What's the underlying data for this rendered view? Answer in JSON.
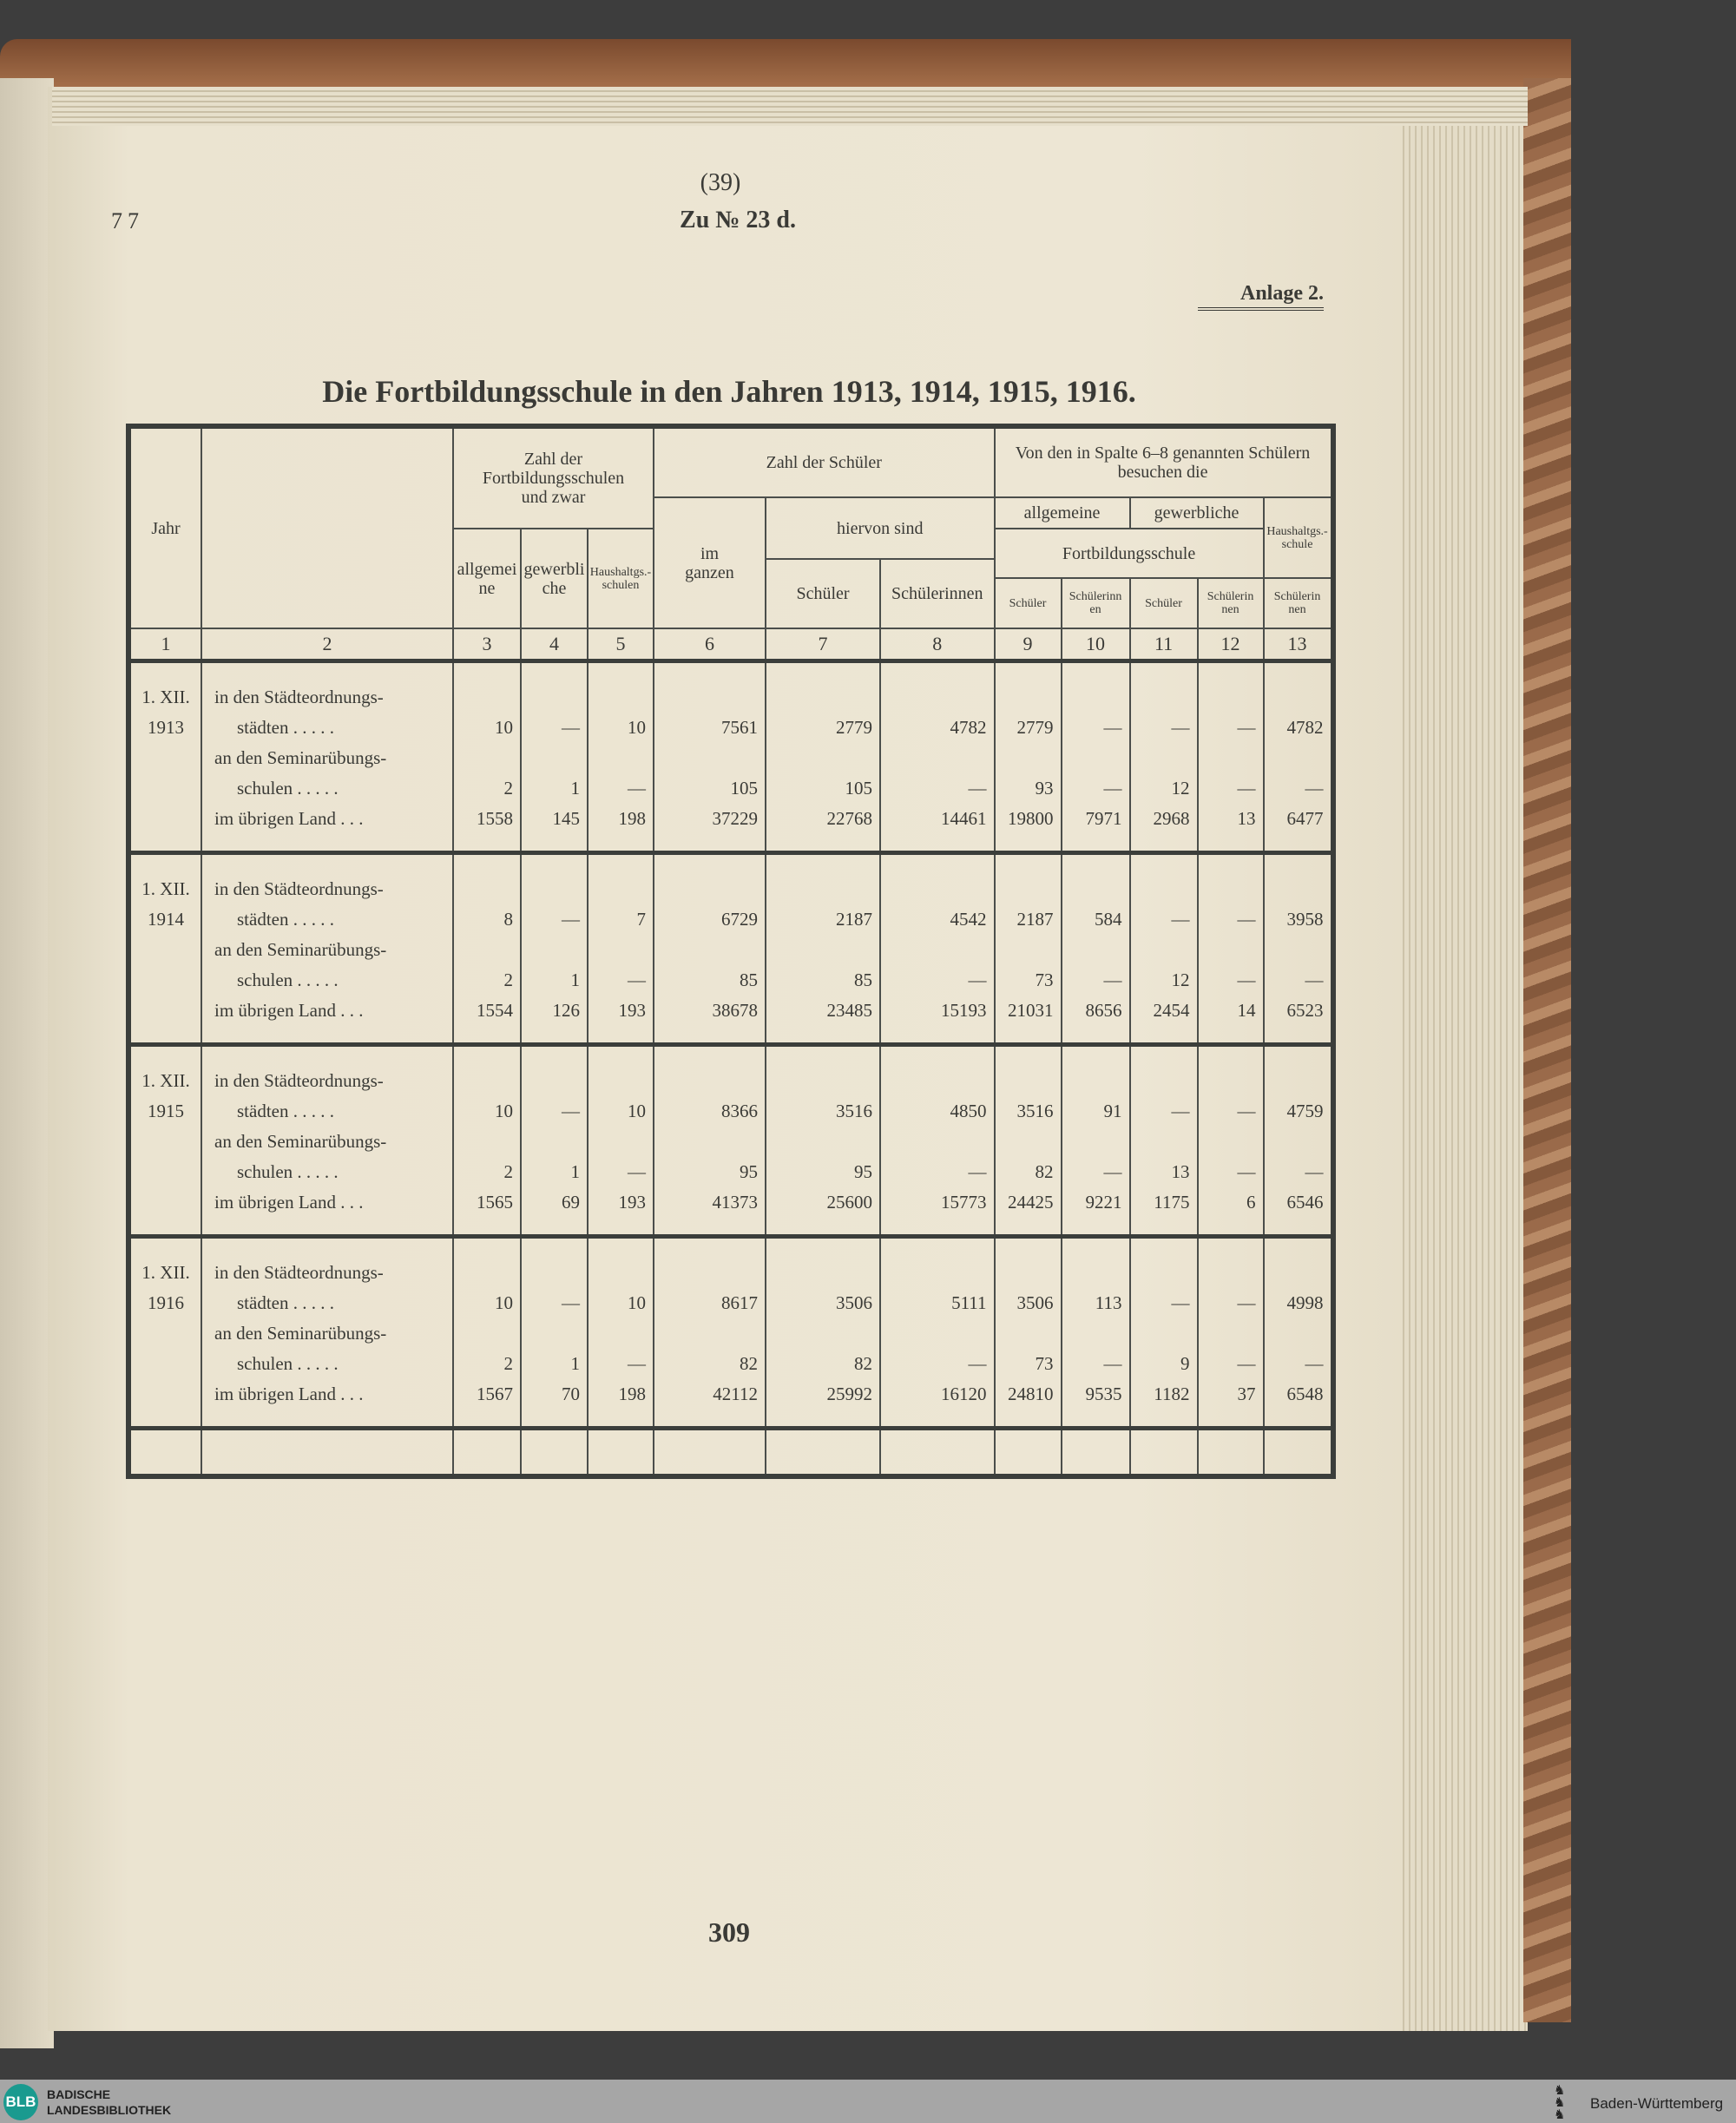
{
  "page_header": {
    "paren": "(39)",
    "doc_ref": "Zu № 23 d.",
    "margin_number": "77",
    "annex": "Anlage 2."
  },
  "title": "Die Fortbildungsschule in den Jahren 1913, 1914, 1915, 1916.",
  "page_number": "309",
  "table": {
    "headers": {
      "jahr": "Jahr",
      "zahl_schulen": "Zahl der Fortbildungsschulen und zwar",
      "allgemeine_schulen": "allgemeine",
      "gewerbliche_schulen": "gewerbliche",
      "haushalt_schulen": "Haushaltgs.-schulen",
      "zahl_schueler": "Zahl der Schüler",
      "im_ganzen": "im ganzen",
      "hiervon": "hiervon sind",
      "schueler": "Schüler",
      "schuelerinnen": "Schülerinnen",
      "von_den": "Von den in Spalte 6–8 genannten Schülern besuchen die",
      "allgemeine": "allgemeine",
      "gewerbliche": "gewerbliche",
      "fortbildungsschule": "Fortbildungsschule",
      "haushaltgsschule": "Haushaltgs.-schule",
      "c9": "Schüler",
      "c10": "Schülerinnen",
      "c11": "Schüler",
      "c12": "Schülerinnen",
      "c13": "Schülerinnen"
    },
    "column_numbers": [
      "1",
      "2",
      "3",
      "4",
      "5",
      "6",
      "7",
      "8",
      "9",
      "10",
      "11",
      "12",
      "13"
    ],
    "row_labels": [
      "in den Städteordnungs-",
      "städten . . . . .",
      "an den Seminarübungs-",
      "schulen . . . . .",
      "im übrigen Land . . ."
    ],
    "years": [
      {
        "date": "1. XII.",
        "year": "1913",
        "rows": [
          [
            "10",
            "—",
            "10",
            "7561",
            "2779",
            "4782",
            "2779",
            "—",
            "—",
            "—",
            "4782"
          ],
          [
            "2",
            "1",
            "—",
            "105",
            "105",
            "—",
            "93",
            "—",
            "12",
            "—",
            "—"
          ],
          [
            "1558",
            "145",
            "198",
            "37229",
            "22768",
            "14461",
            "19800",
            "7971",
            "2968",
            "13",
            "6477"
          ]
        ]
      },
      {
        "date": "1. XII.",
        "year": "1914",
        "rows": [
          [
            "8",
            "—",
            "7",
            "6729",
            "2187",
            "4542",
            "2187",
            "584",
            "—",
            "—",
            "3958"
          ],
          [
            "2",
            "1",
            "—",
            "85",
            "85",
            "—",
            "73",
            "—",
            "12",
            "—",
            "—"
          ],
          [
            "1554",
            "126",
            "193",
            "38678",
            "23485",
            "15193",
            "21031",
            "8656",
            "2454",
            "14",
            "6523"
          ]
        ]
      },
      {
        "date": "1. XII.",
        "year": "1915",
        "rows": [
          [
            "10",
            "—",
            "10",
            "8366",
            "3516",
            "4850",
            "3516",
            "91",
            "—",
            "—",
            "4759"
          ],
          [
            "2",
            "1",
            "—",
            "95",
            "95",
            "—",
            "82",
            "—",
            "13",
            "—",
            "—"
          ],
          [
            "1565",
            "69",
            "193",
            "41373",
            "25600",
            "15773",
            "24425",
            "9221",
            "1175",
            "6",
            "6546"
          ]
        ]
      },
      {
        "date": "1. XII.",
        "year": "1916",
        "rows": [
          [
            "10",
            "—",
            "10",
            "8617",
            "3506",
            "5111",
            "3506",
            "113",
            "—",
            "—",
            "4998"
          ],
          [
            "2",
            "1",
            "—",
            "82",
            "82",
            "—",
            "73",
            "—",
            "9",
            "—",
            "—"
          ],
          [
            "1567",
            "70",
            "198",
            "42112",
            "25992",
            "16120",
            "24810",
            "9535",
            "1182",
            "37",
            "6548"
          ]
        ]
      }
    ]
  },
  "footer": {
    "library_logo": "BLB",
    "library_name_1": "BADISCHE",
    "library_name_2": "LANDESBIBLIOTHEK",
    "state_name": "Baden-Württemberg"
  }
}
